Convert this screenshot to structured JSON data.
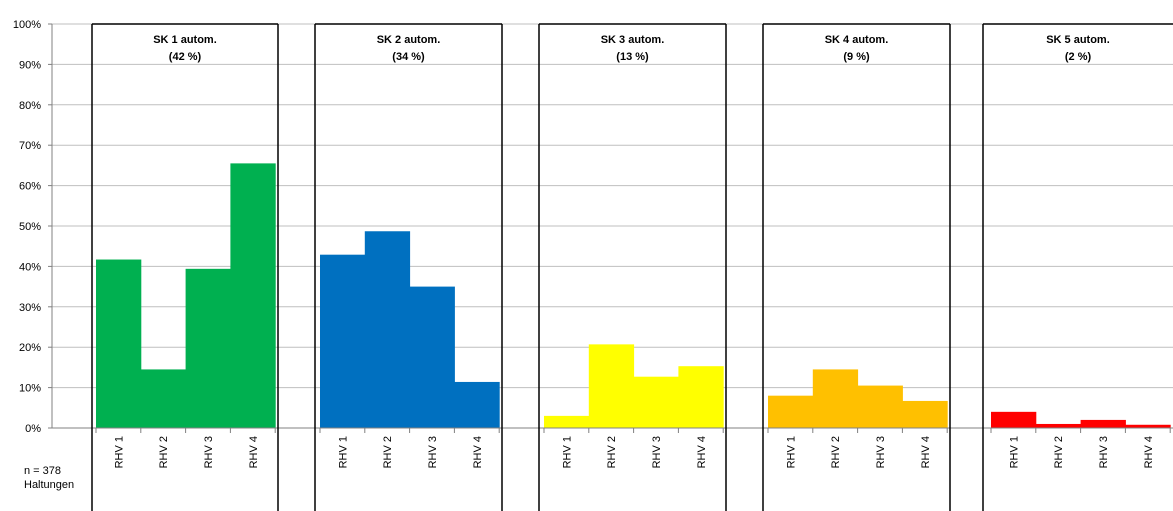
{
  "chart_data": {
    "type": "bar",
    "yticks": [
      "0%",
      "10%",
      "20%",
      "30%",
      "40%",
      "50%",
      "60%",
      "70%",
      "80%",
      "90%",
      "100%"
    ],
    "ylim": [
      0,
      100
    ],
    "grid": true,
    "categories": [
      "RHV 1",
      "RHV 2",
      "RHV 3",
      "RHV 4"
    ],
    "panels": [
      {
        "title": "SK 1 autom.",
        "subtitle": "(42 %)",
        "color": "#00B050",
        "values": [
          41.7,
          14.5,
          39.4,
          65.5
        ]
      },
      {
        "title": "SK 2 autom.",
        "subtitle": "(34 %)",
        "color": "#0070C0",
        "values": [
          42.9,
          48.7,
          35.0,
          11.4
        ]
      },
      {
        "title": "SK 3 autom.",
        "subtitle": "(13 %)",
        "color": "#FFFF00",
        "values": [
          3.0,
          20.7,
          12.7,
          15.3
        ]
      },
      {
        "title": "SK 4 autom.",
        "subtitle": "(9 %)",
        "color": "#FFC000",
        "values": [
          8.0,
          14.5,
          10.5,
          6.7
        ]
      },
      {
        "title": "SK 5 autom.",
        "subtitle": "(2 %)",
        "color": "#FF0000",
        "values": [
          4.0,
          1.0,
          2.0,
          0.8
        ]
      }
    ],
    "note_lines": [
      "n = 378",
      "Haltungen"
    ]
  }
}
